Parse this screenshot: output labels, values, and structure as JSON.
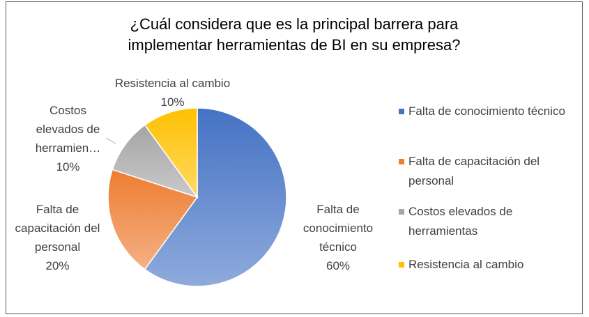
{
  "chart_data": {
    "type": "pie",
    "title": "¿Cuál considera que es la principal barrera para implementar herramientas de BI en su empresa?",
    "categories": [
      "Falta de conocimiento técnico",
      "Falta de capacitación del personal",
      "Costos elevados de herramientas",
      "Resistencia al cambio"
    ],
    "data_label_names": [
      "Falta de conocimiento técnico",
      "Falta de capacitación del personal",
      "Costos elevados de herramien…",
      "Resistencia al cambio"
    ],
    "values": [
      60,
      20,
      10,
      10
    ],
    "value_labels": [
      "60%",
      "20%",
      "10%",
      "10%"
    ],
    "colors": [
      "#4472c4",
      "#ed7d31",
      "#a5a5a5",
      "#ffc000"
    ],
    "legend": "right"
  }
}
